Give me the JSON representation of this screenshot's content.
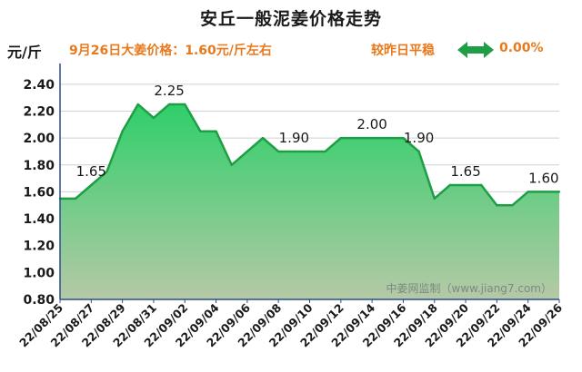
{
  "header": {
    "title": "安丘一般泥姜价格走势",
    "unit": "元/斤",
    "price_info": "9月26日大姜价格：1.60元/斤左右",
    "compare_label": "较昨日平稳",
    "change_value": "0.00%",
    "arrow_icon": "double-arrow-left-right-icon",
    "arrow_color": "#1e9e45"
  },
  "watermark": "中姜网监制（www.jiang7.com）",
  "colors": {
    "line": "#1e9e45",
    "fill_top": "#2fcf6a",
    "fill_bottom": "#b5c9a6",
    "axis": "#2b4c8c",
    "grid": "#d0d0d0",
    "text": "#1a1a1a",
    "accent": "#e8791d"
  },
  "chart_data": {
    "type": "area",
    "title": "安丘一般泥姜价格走势",
    "xlabel": "",
    "ylabel": "元/斤",
    "ylim": [
      0.8,
      2.5
    ],
    "yticks": [
      "2.40",
      "2.20",
      "2.00",
      "1.80",
      "1.60",
      "1.40",
      "1.20",
      "1.00",
      "0.80"
    ],
    "ytick_values": [
      2.4,
      2.2,
      2.0,
      1.8,
      1.6,
      1.4,
      1.2,
      1.0,
      0.8
    ],
    "xtick_labels": [
      "22/08/25",
      "22/08/27",
      "22/08/29",
      "22/08/31",
      "22/09/02",
      "22/09/04",
      "22/09/06",
      "22/09/08",
      "22/09/10",
      "22/09/12",
      "22/09/14",
      "22/09/16",
      "22/09/18",
      "22/09/20",
      "22/09/22",
      "22/09/24",
      "22/09/26"
    ],
    "grid": true,
    "legend": "none",
    "x": [
      "22/08/25",
      "22/08/26",
      "22/08/27",
      "22/08/28",
      "22/08/29",
      "22/08/30",
      "22/08/31",
      "22/09/01",
      "22/09/02",
      "22/09/03",
      "22/09/04",
      "22/09/05",
      "22/09/06",
      "22/09/07",
      "22/09/08",
      "22/09/09",
      "22/09/10",
      "22/09/11",
      "22/09/12",
      "22/09/13",
      "22/09/14",
      "22/09/15",
      "22/09/16",
      "22/09/17",
      "22/09/18",
      "22/09/19",
      "22/09/20",
      "22/09/21",
      "22/09/22",
      "22/09/23",
      "22/09/24",
      "22/09/25",
      "22/09/26"
    ],
    "values": [
      1.55,
      1.55,
      1.65,
      1.75,
      2.05,
      2.25,
      2.15,
      2.25,
      2.25,
      2.05,
      2.05,
      1.8,
      1.9,
      2.0,
      1.9,
      1.9,
      1.9,
      1.9,
      2.0,
      2.0,
      2.0,
      2.0,
      2.0,
      1.9,
      1.55,
      1.65,
      1.65,
      1.65,
      1.5,
      1.5,
      1.6,
      1.6,
      1.6
    ],
    "data_labels": [
      {
        "x": "22/08/27",
        "value": 1.65,
        "text": "1.65"
      },
      {
        "x": "22/09/01",
        "value": 2.25,
        "text": "2.25"
      },
      {
        "x": "22/09/09",
        "value": 1.9,
        "text": "1.90"
      },
      {
        "x": "22/09/14",
        "value": 2.0,
        "text": "2.00"
      },
      {
        "x": "22/09/17",
        "value": 1.9,
        "text": "1.90"
      },
      {
        "x": "22/09/20",
        "value": 1.65,
        "text": "1.65"
      },
      {
        "x": "22/09/25",
        "value": 1.6,
        "text": "1.60"
      }
    ]
  }
}
